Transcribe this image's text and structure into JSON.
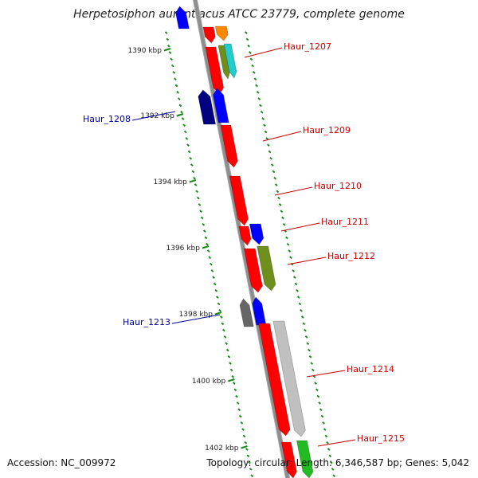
{
  "title": "Herpetosiphon aurantiacus ATCC 23779, complete genome",
  "accession": "Accession: NC_009972",
  "summary": "Topology: circular; Length: 6,346,587 bp; Genes: 5,042",
  "colors": {
    "backbone": "#8e8e8e",
    "ticks": "#1a8a1a",
    "forward_label": "#cc0000",
    "reverse_label": "#0000a0",
    "red": "#ff0000",
    "orange": "#ff8800",
    "olive": "#6f8f1c",
    "cyan": "#22cccc",
    "blue": "#0000ff",
    "navy": "#000080",
    "gray": "#666666",
    "silver": "#c0c0c0",
    "green": "#22bb22"
  },
  "tick_labels": [
    "1390 kbp",
    "1392 kbp",
    "1394 kbp",
    "1396 kbp",
    "1398 kbp",
    "1400 kbp",
    "1402 kbp"
  ],
  "gene_labels": [
    {
      "name": "Haur_1207",
      "strand": "forward"
    },
    {
      "name": "Haur_1208",
      "strand": "reverse"
    },
    {
      "name": "Haur_1209",
      "strand": "forward"
    },
    {
      "name": "Haur_1210",
      "strand": "forward"
    },
    {
      "name": "Haur_1211",
      "strand": "forward"
    },
    {
      "name": "Haur_1212",
      "strand": "forward"
    },
    {
      "name": "Haur_1213",
      "strand": "reverse"
    },
    {
      "name": "Haur_1214",
      "strand": "forward"
    },
    {
      "name": "Haur_1215",
      "strand": "forward"
    }
  ]
}
